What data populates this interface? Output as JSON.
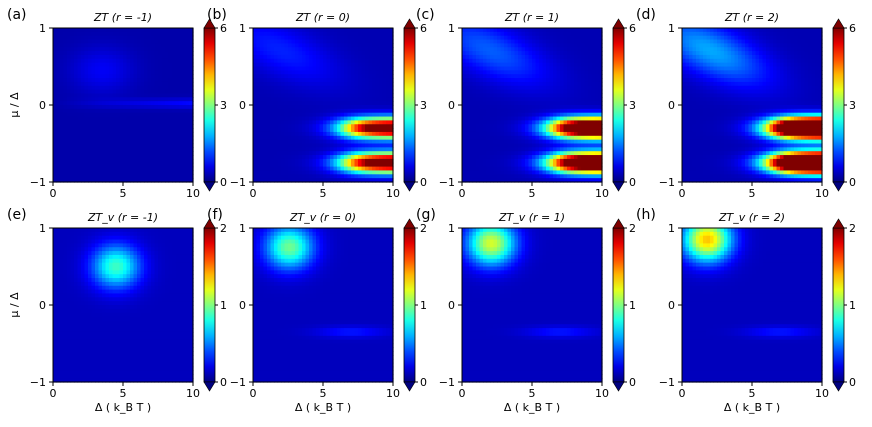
{
  "colors": {
    "cmap": "jet",
    "frame": "#000000",
    "background": "#ffffff"
  },
  "chart_data": {
    "type": "heatmap",
    "layout": "2x4 grid of heatmaps with per-panel colorbars",
    "x_axis": {
      "range": [
        0,
        10
      ],
      "ticks": [
        "0",
        "5",
        "10"
      ]
    },
    "y_axis": {
      "range": [
        -1,
        1
      ],
      "ticks": [
        "1",
        "0",
        "−1"
      ]
    },
    "xlabel": "Δ ( k_B T )",
    "ylabel": "μ / Δ",
    "panels": [
      {
        "letter": "(a)",
        "title": "ZT (r = -1)",
        "quantity": "ZT",
        "r": -1,
        "vmin": 0,
        "vmax": 6,
        "cbar_ticks": [
          "6",
          "3",
          "0"
        ]
      },
      {
        "letter": "(b)",
        "title": "ZT (r = 0)",
        "quantity": "ZT",
        "r": 0,
        "vmin": 0,
        "vmax": 6,
        "cbar_ticks": [
          "6",
          "3",
          "0"
        ]
      },
      {
        "letter": "(c)",
        "title": "ZT (r = 1)",
        "quantity": "ZT",
        "r": 1,
        "vmin": 0,
        "vmax": 6,
        "cbar_ticks": [
          "6",
          "3",
          "0"
        ]
      },
      {
        "letter": "(d)",
        "title": "ZT (r = 2)",
        "quantity": "ZT",
        "r": 2,
        "vmin": 0,
        "vmax": 6,
        "cbar_ticks": [
          "6",
          "3",
          "0"
        ]
      },
      {
        "letter": "(e)",
        "title": "ZT_v (r = -1)",
        "quantity": "ZT_v",
        "r": -1,
        "vmin": 0,
        "vmax": 2,
        "cbar_ticks": [
          "2",
          "1",
          "0"
        ]
      },
      {
        "letter": "(f)",
        "title": "ZT_v (r = 0)",
        "quantity": "ZT_v",
        "r": 0,
        "vmin": 0,
        "vmax": 2,
        "cbar_ticks": [
          "2",
          "1",
          "0"
        ]
      },
      {
        "letter": "(g)",
        "title": "ZT_v (r = 1)",
        "quantity": "ZT_v",
        "r": 1,
        "vmin": 0,
        "vmax": 2,
        "cbar_ticks": [
          "2",
          "1",
          "0"
        ]
      },
      {
        "letter": "(h)",
        "title": "ZT_v (r = 2)",
        "quantity": "ZT_v",
        "r": 2,
        "vmin": 0,
        "vmax": 2,
        "cbar_ticks": [
          "2",
          "1",
          "0"
        ]
      }
    ]
  }
}
